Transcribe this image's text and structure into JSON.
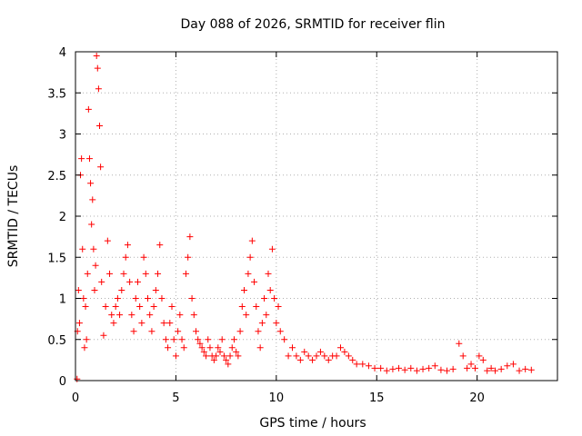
{
  "chart_data": {
    "type": "scatter",
    "title": "Day 088 of 2026, SRMTID for receiver flin",
    "xlabel": "GPS time / hours",
    "ylabel": "SRMTID / TECUs",
    "xlim": [
      0,
      24
    ],
    "ylim": [
      0,
      4
    ],
    "xticks": [
      0,
      5,
      10,
      15,
      20
    ],
    "xtick_labels": [
      "0",
      "5",
      "10",
      "15",
      "20"
    ],
    "yticks": [
      0,
      0.5,
      1,
      1.5,
      2,
      2.5,
      3,
      3.5,
      4
    ],
    "ytick_labels": [
      "0",
      "0.5",
      "1",
      "1.5",
      "2",
      "2.5",
      "3",
      "3.5",
      "4"
    ],
    "grid": true,
    "marker": "+",
    "series": [
      {
        "name": "SRMTID",
        "color": "#ff0000",
        "x": [
          0.08,
          0.1,
          0.15,
          0.2,
          0.25,
          0.3,
          0.35,
          0.4,
          0.45,
          0.5,
          0.55,
          0.6,
          0.65,
          0.7,
          0.75,
          0.8,
          0.85,
          0.9,
          0.95,
          1.0,
          1.05,
          1.1,
          1.15,
          1.2,
          1.25,
          1.3,
          1.4,
          1.5,
          1.6,
          1.7,
          1.8,
          1.9,
          2.0,
          2.1,
          2.2,
          2.3,
          2.4,
          2.5,
          2.6,
          2.7,
          2.8,
          2.9,
          3.0,
          3.1,
          3.2,
          3.3,
          3.4,
          3.5,
          3.6,
          3.7,
          3.8,
          3.9,
          4.0,
          4.1,
          4.2,
          4.3,
          4.4,
          4.5,
          4.6,
          4.7,
          4.8,
          4.9,
          5.0,
          5.1,
          5.2,
          5.3,
          5.4,
          5.5,
          5.6,
          5.7,
          5.8,
          5.9,
          6.0,
          6.1,
          6.2,
          6.3,
          6.4,
          6.5,
          6.6,
          6.7,
          6.8,
          6.9,
          7.0,
          7.1,
          7.2,
          7.3,
          7.4,
          7.5,
          7.6,
          7.7,
          7.8,
          7.9,
          8.0,
          8.1,
          8.2,
          8.3,
          8.4,
          8.5,
          8.6,
          8.7,
          8.8,
          8.9,
          9.0,
          9.1,
          9.2,
          9.3,
          9.4,
          9.5,
          9.6,
          9.7,
          9.8,
          9.9,
          10.0,
          10.1,
          10.2,
          10.4,
          10.6,
          10.8,
          11.0,
          11.2,
          11.4,
          11.6,
          11.8,
          12.0,
          12.2,
          12.4,
          12.6,
          12.8,
          13.0,
          13.2,
          13.4,
          13.6,
          13.8,
          14.0,
          14.3,
          14.6,
          14.9,
          15.2,
          15.5,
          15.8,
          16.1,
          16.4,
          16.7,
          17.0,
          17.3,
          17.6,
          17.9,
          18.2,
          18.5,
          18.8,
          19.1,
          19.3,
          19.5,
          19.7,
          19.9,
          20.1,
          20.3,
          20.5,
          20.7,
          20.9,
          21.2,
          21.5,
          21.8,
          22.1,
          22.4,
          22.7
        ],
        "y": [
          0.02,
          0.6,
          1.1,
          0.7,
          2.5,
          2.7,
          1.6,
          1.0,
          0.4,
          0.9,
          0.5,
          1.3,
          3.3,
          2.7,
          2.4,
          1.9,
          2.2,
          1.6,
          1.1,
          1.4,
          3.95,
          3.8,
          3.55,
          3.1,
          2.6,
          1.2,
          0.55,
          0.9,
          1.7,
          1.3,
          0.8,
          0.7,
          0.9,
          1.0,
          0.8,
          1.1,
          1.3,
          1.5,
          1.65,
          1.2,
          0.8,
          0.6,
          1.0,
          1.2,
          0.9,
          0.7,
          1.5,
          1.3,
          1.0,
          0.8,
          0.6,
          0.9,
          1.1,
          1.3,
          1.65,
          1.0,
          0.7,
          0.5,
          0.4,
          0.7,
          0.9,
          0.5,
          0.3,
          0.6,
          0.8,
          0.5,
          0.4,
          1.3,
          1.5,
          1.75,
          1.0,
          0.8,
          0.6,
          0.5,
          0.45,
          0.4,
          0.35,
          0.3,
          0.5,
          0.4,
          0.3,
          0.25,
          0.3,
          0.4,
          0.35,
          0.5,
          0.3,
          0.25,
          0.2,
          0.3,
          0.4,
          0.5,
          0.35,
          0.3,
          0.6,
          0.9,
          1.1,
          0.8,
          1.3,
          1.5,
          1.7,
          1.2,
          0.9,
          0.6,
          0.4,
          0.7,
          1.0,
          0.8,
          1.3,
          1.1,
          1.6,
          1.0,
          0.7,
          0.9,
          0.6,
          0.5,
          0.3,
          0.4,
          0.3,
          0.25,
          0.35,
          0.3,
          0.25,
          0.3,
          0.35,
          0.3,
          0.25,
          0.3,
          0.3,
          0.4,
          0.35,
          0.3,
          0.25,
          0.2,
          0.2,
          0.18,
          0.15,
          0.15,
          0.12,
          0.14,
          0.15,
          0.13,
          0.15,
          0.12,
          0.14,
          0.15,
          0.18,
          0.13,
          0.12,
          0.14,
          0.45,
          0.3,
          0.15,
          0.2,
          0.15,
          0.3,
          0.25,
          0.12,
          0.15,
          0.12,
          0.14,
          0.18,
          0.2,
          0.12,
          0.14,
          0.13
        ]
      }
    ]
  }
}
